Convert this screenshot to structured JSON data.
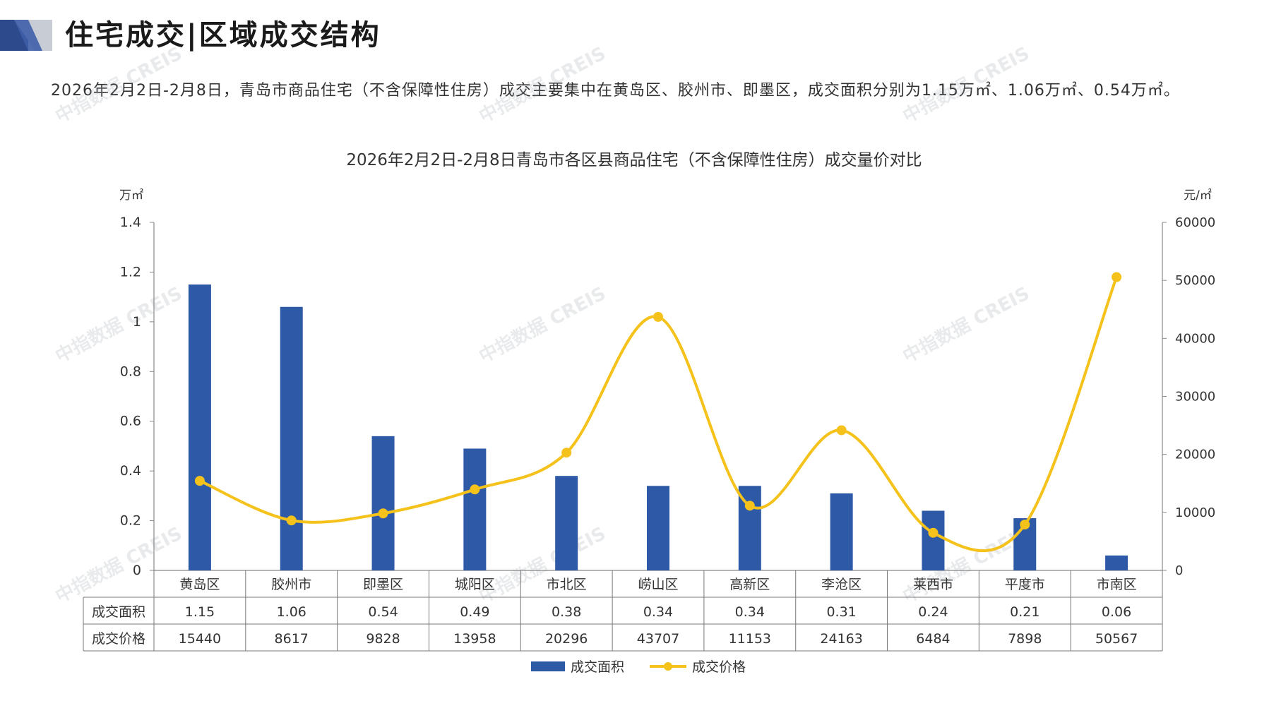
{
  "header": {
    "title": "住宅成交|区域成交结构"
  },
  "summary": {
    "text": "2026年2月2日-2月8日，青岛市商品住宅（不含保障性住房）成交主要集中在黄岛区、胶州市、即墨区，成交面积分别为1.15万㎡、1.06万㎡、0.54万㎡。"
  },
  "watermark": {
    "text": "中指数据 CREIS"
  },
  "colors": {
    "bar": "#2E59A7",
    "line": "#F4C21B",
    "logo_dark": "#2d4a8c",
    "logo_light": "#c8ccd4"
  },
  "chart_data": {
    "type": "bar",
    "title": "2026年2月2日-2月8日青岛市各区县商品住宅（不含保障性住房）成交量价对比",
    "y_left_unit": "万㎡",
    "y_right_unit": "元/㎡",
    "y_left_ticks": [
      "1.4",
      "1.2",
      "1",
      "0.8",
      "0.6",
      "0.4",
      "0.2",
      "0"
    ],
    "y_right_ticks": [
      "60000",
      "50000",
      "40000",
      "30000",
      "20000",
      "10000",
      "0"
    ],
    "ylim_left": [
      0,
      1.4
    ],
    "ylim_right": [
      0,
      60000
    ],
    "categories": [
      "黄岛区",
      "胶州市",
      "即墨区",
      "城阳区",
      "市北区",
      "崂山区",
      "高新区",
      "李沧区",
      "莱西市",
      "平度市",
      "市南区"
    ],
    "series": [
      {
        "name": "成交面积",
        "type": "bar",
        "axis": "left",
        "values": [
          1.15,
          1.06,
          0.54,
          0.49,
          0.38,
          0.34,
          0.34,
          0.31,
          0.24,
          0.21,
          0.06
        ],
        "labels": [
          "1.15",
          "1.06",
          "0.54",
          "0.49",
          "0.38",
          "0.34",
          "0.34",
          "0.31",
          "0.24",
          "0.21",
          "0.06"
        ]
      },
      {
        "name": "成交价格",
        "type": "line",
        "axis": "right",
        "values": [
          15440,
          8617,
          9828,
          13958,
          20296,
          43707,
          11153,
          24163,
          6484,
          7898,
          50567
        ],
        "labels": [
          "15440",
          "8617",
          "9828",
          "13958",
          "20296",
          "43707",
          "11153",
          "24163",
          "6484",
          "7898",
          "50567"
        ]
      }
    ],
    "legend": [
      "成交面积",
      "成交价格"
    ],
    "legend_position": "bottom"
  }
}
